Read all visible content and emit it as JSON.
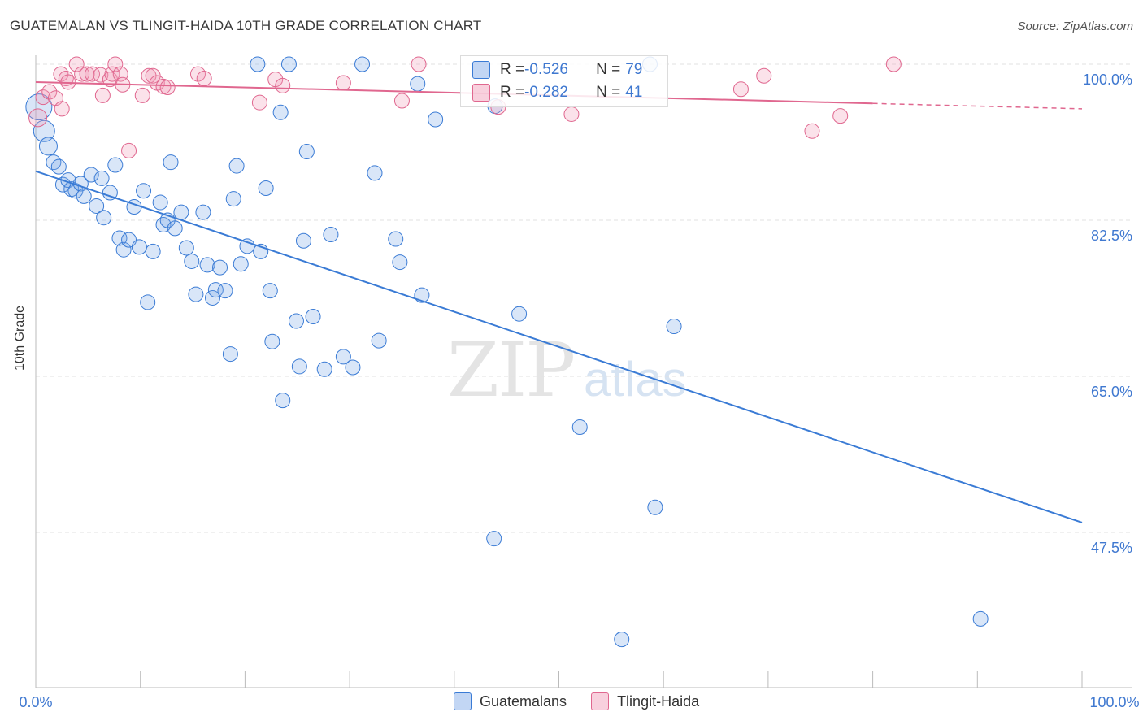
{
  "title": "GUATEMALAN VS TLINGIT-HAIDA 10TH GRADE CORRELATION CHART",
  "source": "Source: ZipAtlas.com",
  "watermark": {
    "zip": "ZIP",
    "atlas": "atlas"
  },
  "legend_stats": [
    {
      "r_label": "R = ",
      "r_value": "-0.526",
      "n_label": "N = ",
      "n_value": "79"
    },
    {
      "r_label": "R = ",
      "r_value": "-0.282",
      "n_label": "N = ",
      "n_value": "41"
    }
  ],
  "colors": {
    "blue": "#3a7bd5",
    "blue_fill": "rgba(120,165,230,0.28)",
    "pink": "#e0678f",
    "pink_fill": "rgba(240,150,180,0.28)"
  },
  "chart_data": {
    "type": "scatter",
    "title": "GUATEMALAN VS TLINGIT-HAIDA 10TH GRADE CORRELATION CHART",
    "xlabel": "",
    "ylabel": "10th Grade",
    "xlim": [
      0,
      100
    ],
    "ylim": [
      30,
      100
    ],
    "x_tick_labels": [
      "0.0%",
      "100.0%"
    ],
    "y_ticks": [
      100,
      82.5,
      65,
      47.5
    ],
    "y_tick_labels": [
      "100.0%",
      "82.5%",
      "65.0%",
      "47.5%"
    ],
    "grid": true,
    "legend_position": "bottom",
    "series": [
      {
        "name": "Guatemalans",
        "color": "#3a7bd5",
        "trend": {
          "x0": 0,
          "y0": 88.0,
          "x1": 100,
          "y1": 48.6
        },
        "points": [
          [
            0.3,
            95.2
          ],
          [
            0.8,
            92.5
          ],
          [
            1.2,
            90.8
          ],
          [
            1.7,
            89.0
          ],
          [
            2.2,
            88.5
          ],
          [
            2.6,
            86.5
          ],
          [
            3.1,
            87.0
          ],
          [
            3.4,
            86.0
          ],
          [
            3.8,
            85.8
          ],
          [
            4.3,
            86.6
          ],
          [
            4.6,
            85.2
          ],
          [
            5.3,
            87.6
          ],
          [
            5.8,
            84.1
          ],
          [
            6.3,
            87.2
          ],
          [
            6.5,
            82.8
          ],
          [
            7.1,
            85.6
          ],
          [
            7.6,
            88.7
          ],
          [
            8.0,
            80.5
          ],
          [
            8.4,
            79.2
          ],
          [
            8.9,
            80.3
          ],
          [
            9.4,
            84.0
          ],
          [
            9.9,
            79.5
          ],
          [
            10.3,
            85.8
          ],
          [
            10.7,
            73.3
          ],
          [
            11.2,
            79.0
          ],
          [
            11.9,
            84.5
          ],
          [
            12.2,
            82.0
          ],
          [
            12.6,
            82.5
          ],
          [
            12.9,
            89.0
          ],
          [
            13.3,
            81.6
          ],
          [
            13.9,
            83.4
          ],
          [
            14.4,
            79.4
          ],
          [
            14.9,
            77.9
          ],
          [
            15.3,
            74.2
          ],
          [
            16.0,
            83.4
          ],
          [
            16.4,
            77.5
          ],
          [
            16.9,
            73.8
          ],
          [
            17.2,
            74.7
          ],
          [
            17.6,
            77.2
          ],
          [
            18.1,
            74.6
          ],
          [
            18.6,
            67.5
          ],
          [
            18.9,
            84.9
          ],
          [
            19.2,
            88.6
          ],
          [
            19.6,
            77.6
          ],
          [
            20.2,
            79.6
          ],
          [
            21.2,
            100.0
          ],
          [
            21.5,
            79.0
          ],
          [
            22.0,
            86.1
          ],
          [
            22.4,
            74.6
          ],
          [
            22.6,
            68.9
          ],
          [
            23.4,
            94.6
          ],
          [
            23.6,
            62.3
          ],
          [
            24.2,
            100.0
          ],
          [
            24.9,
            71.2
          ],
          [
            25.2,
            66.1
          ],
          [
            25.6,
            80.2
          ],
          [
            25.9,
            90.2
          ],
          [
            26.5,
            71.7
          ],
          [
            27.6,
            65.8
          ],
          [
            28.2,
            80.9
          ],
          [
            29.4,
            67.2
          ],
          [
            30.3,
            66.0
          ],
          [
            31.2,
            100.0
          ],
          [
            32.4,
            87.8
          ],
          [
            32.8,
            69.0
          ],
          [
            34.4,
            80.4
          ],
          [
            34.8,
            77.8
          ],
          [
            36.5,
            97.8
          ],
          [
            36.9,
            74.1
          ],
          [
            38.2,
            93.8
          ],
          [
            43.9,
            95.3
          ],
          [
            43.8,
            46.8
          ],
          [
            46.2,
            72.0
          ],
          [
            52.0,
            59.3
          ],
          [
            56.0,
            35.5
          ],
          [
            58.7,
            100.0
          ],
          [
            59.2,
            50.3
          ],
          [
            61.0,
            70.6
          ],
          [
            90.3,
            37.8
          ]
        ]
      },
      {
        "name": "Tlingit-Haida",
        "color": "#e0678f",
        "trend": {
          "x0": 0,
          "y0": 98.0,
          "x1": 80,
          "y1": 95.6,
          "dash_to_x": 100,
          "dash_to_y": 95.0
        },
        "points": [
          [
            0.2,
            94.0
          ],
          [
            0.7,
            96.3
          ],
          [
            1.3,
            96.9
          ],
          [
            1.9,
            96.2
          ],
          [
            2.4,
            98.9
          ],
          [
            2.5,
            95.0
          ],
          [
            2.9,
            98.4
          ],
          [
            3.1,
            98.0
          ],
          [
            3.9,
            100.0
          ],
          [
            4.4,
            98.9
          ],
          [
            4.9,
            98.9
          ],
          [
            5.4,
            98.9
          ],
          [
            6.2,
            98.8
          ],
          [
            6.4,
            96.5
          ],
          [
            7.1,
            98.3
          ],
          [
            7.3,
            98.9
          ],
          [
            7.6,
            100.0
          ],
          [
            8.1,
            98.9
          ],
          [
            8.3,
            97.7
          ],
          [
            8.9,
            90.3
          ],
          [
            10.2,
            96.5
          ],
          [
            10.8,
            98.7
          ],
          [
            11.2,
            98.7
          ],
          [
            11.6,
            97.9
          ],
          [
            12.2,
            97.5
          ],
          [
            12.6,
            97.4
          ],
          [
            15.5,
            98.9
          ],
          [
            16.1,
            98.4
          ],
          [
            21.4,
            95.7
          ],
          [
            22.9,
            98.3
          ],
          [
            23.6,
            97.6
          ],
          [
            29.4,
            97.9
          ],
          [
            35.0,
            95.9
          ],
          [
            36.6,
            100.0
          ],
          [
            44.2,
            95.2
          ],
          [
            51.2,
            94.4
          ],
          [
            67.4,
            97.2
          ],
          [
            69.6,
            98.7
          ],
          [
            74.2,
            92.5
          ],
          [
            76.9,
            94.2
          ],
          [
            82.0,
            100.0
          ]
        ]
      }
    ]
  }
}
